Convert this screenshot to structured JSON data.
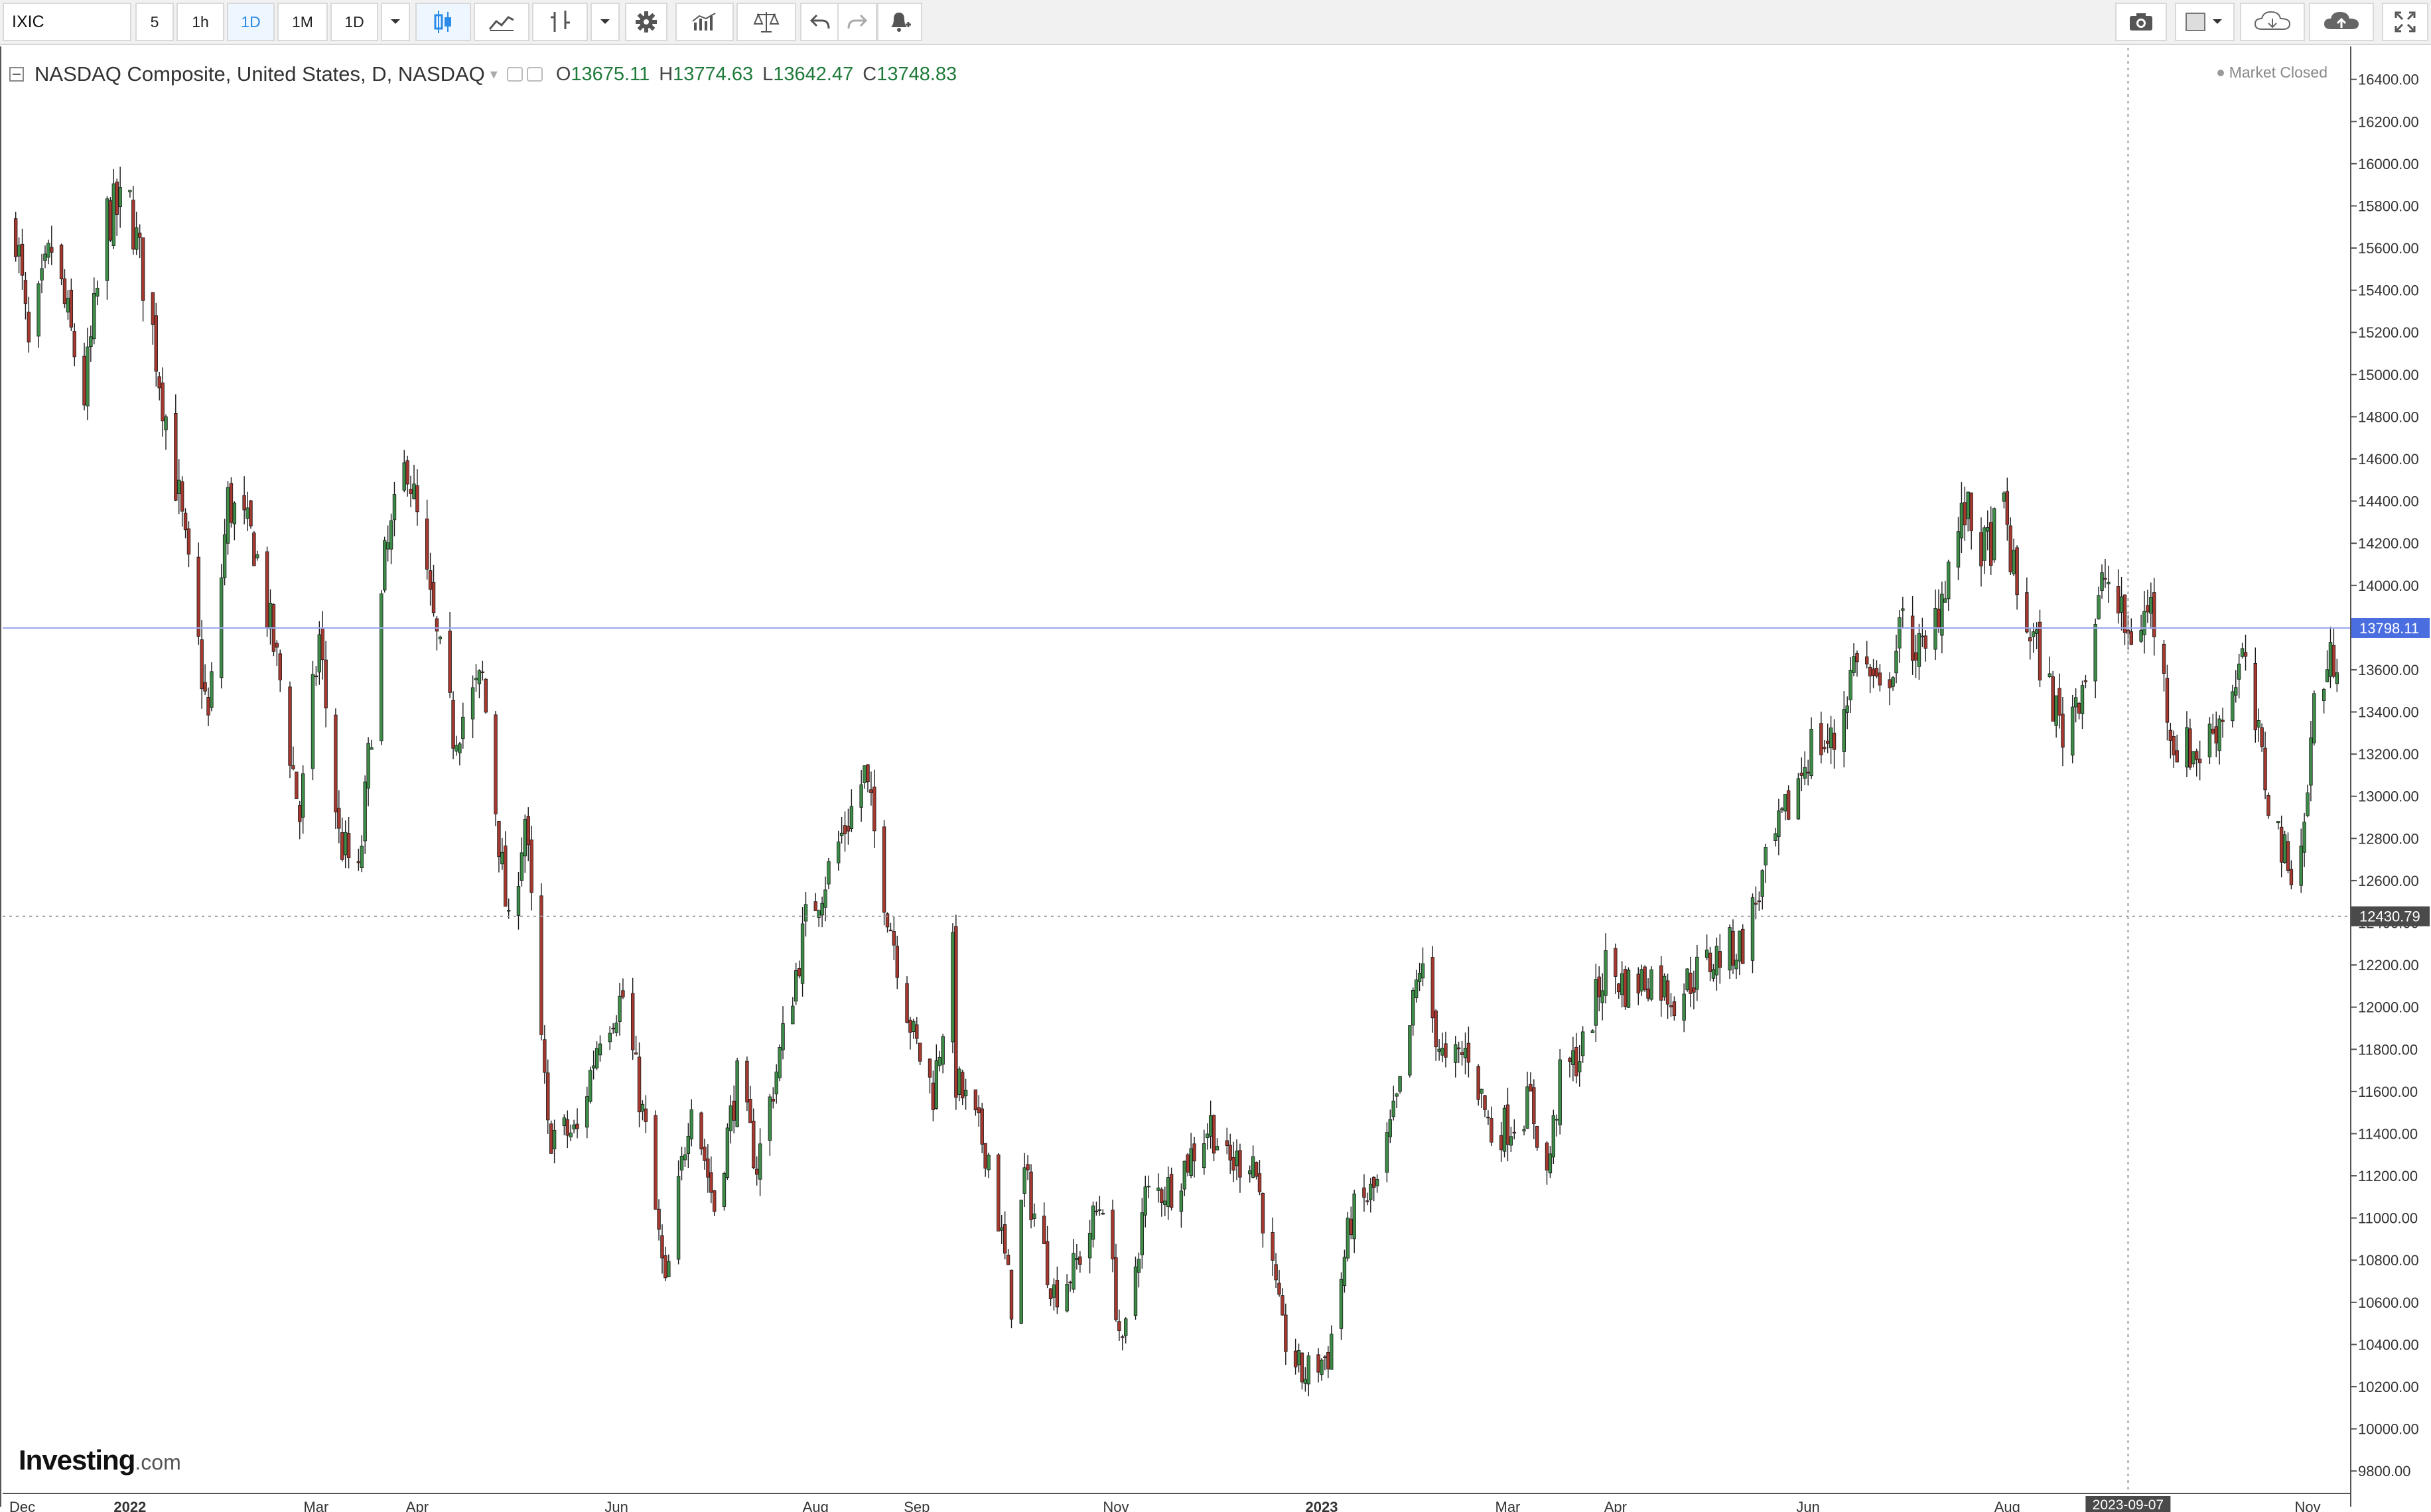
{
  "toolbar": {
    "symbol": "IXIC",
    "intervals": [
      "5",
      "1h",
      "1D",
      "1M",
      "1D"
    ],
    "active_interval": "1D",
    "icons": [
      "candles-icon",
      "line-chart-icon",
      "bar-chart-icon",
      "chevron-down-icon",
      "gear-icon",
      "indicators-icon",
      "compare-icon",
      "undo-icon",
      "redo-icon",
      "alert-icon",
      "camera-icon",
      "template-icon",
      "chevron-down-icon",
      "cloud-download-icon",
      "cloud-upload-icon",
      "fullscreen-icon"
    ]
  },
  "legend": {
    "title": "NASDAQ Composite, United States, D, NASDAQ",
    "open_key": "O",
    "open": "13675.11",
    "high_key": "H",
    "high": "13774.63",
    "low_key": "L",
    "low": "13642.47",
    "close_key": "C",
    "close": "13748.83"
  },
  "market_status": "Market Closed",
  "brand": {
    "name": "Investing",
    "suffix": ".com"
  },
  "chart_data": {
    "type": "candlestick",
    "title": "NASDAQ Composite, United States, D, NASDAQ",
    "ylim": [
      9700,
      16550
    ],
    "y_ticks": [
      "16400.00",
      "16200.00",
      "16000.00",
      "15800.00",
      "15600.00",
      "15400.00",
      "15200.00",
      "15000.00",
      "14800.00",
      "14600.00",
      "14400.00",
      "14200.00",
      "14000.00",
      "13800.00",
      "13600.00",
      "13400.00",
      "13200.00",
      "13000.00",
      "12800.00",
      "12600.00",
      "12400.00",
      "12200.00",
      "12000.00",
      "11800.00",
      "11600.00",
      "11400.00",
      "11200.00",
      "11000.00",
      "10800.00",
      "10600.00",
      "10400.00",
      "10200.00",
      "10000.00",
      "9800.00"
    ],
    "x_labels": [
      {
        "label": "Dec",
        "date": "2021-12-01"
      },
      {
        "label": "2022",
        "date": "2022-01-03"
      },
      {
        "label": "Mar",
        "date": "2022-03-01"
      },
      {
        "label": "Apr",
        "date": "2022-04-01"
      },
      {
        "label": "Jun",
        "date": "2022-06-01"
      },
      {
        "label": "Aug",
        "date": "2022-08-01"
      },
      {
        "label": "Sep",
        "date": "2022-09-01"
      },
      {
        "label": "Nov",
        "date": "2022-11-01"
      },
      {
        "label": "2023",
        "date": "2023-01-03"
      },
      {
        "label": "Mar",
        "date": "2023-03-01"
      },
      {
        "label": "Apr",
        "date": "2023-04-03"
      },
      {
        "label": "Jun",
        "date": "2023-06-01"
      },
      {
        "label": "Aug",
        "date": "2023-08-01"
      },
      {
        "label": "Nov",
        "date": "2023-11-01"
      }
    ],
    "crosshair": {
      "date": "2023-09-07",
      "price": "12430.79",
      "label": "2023-09-07"
    },
    "last_price": {
      "value": "13798.11",
      "color": "#4a6ee0"
    },
    "colors": {
      "up": "#3d8c48",
      "down": "#a5392f",
      "grid": "#f0f0f0"
    },
    "grid": false,
    "close_path": [
      [
        "2021-11-29",
        15700
      ],
      [
        "2021-12-03",
        15100
      ],
      [
        "2021-12-10",
        15600
      ],
      [
        "2021-12-20",
        14900
      ],
      [
        "2021-12-27",
        15750
      ],
      [
        "2022-01-03",
        15800
      ],
      [
        "2022-01-10",
        15200
      ],
      [
        "2022-01-18",
        14400
      ],
      [
        "2022-01-27",
        13350
      ],
      [
        "2022-02-02",
        14400
      ],
      [
        "2022-02-10",
        14200
      ],
      [
        "2022-02-18",
        13550
      ],
      [
        "2022-02-24",
        12900
      ],
      [
        "2022-03-02",
        13750
      ],
      [
        "2022-03-08",
        12800
      ],
      [
        "2022-03-14",
        12600
      ],
      [
        "2022-03-22",
        14100
      ],
      [
        "2022-03-29",
        14600
      ],
      [
        "2022-04-05",
        13900
      ],
      [
        "2022-04-12",
        13300
      ],
      [
        "2022-04-21",
        13550
      ],
      [
        "2022-04-29",
        12350
      ],
      [
        "2022-05-04",
        12900
      ],
      [
        "2022-05-11",
        11400
      ],
      [
        "2022-05-20",
        11400
      ],
      [
        "2022-05-27",
        11900
      ],
      [
        "2022-06-03",
        12050
      ],
      [
        "2022-06-10",
        11400
      ],
      [
        "2022-06-16",
        10650
      ],
      [
        "2022-06-24",
        11600
      ],
      [
        "2022-07-01",
        11050
      ],
      [
        "2022-07-08",
        11650
      ],
      [
        "2022-07-14",
        11250
      ],
      [
        "2022-07-22",
        11850
      ],
      [
        "2022-07-29",
        12400
      ],
      [
        "2022-08-05",
        12650
      ],
      [
        "2022-08-16",
        13100
      ],
      [
        "2022-08-22",
        12550
      ],
      [
        "2022-08-31",
        11850
      ],
      [
        "2022-09-06",
        11600
      ],
      [
        "2022-09-12",
        12250
      ],
      [
        "2022-09-13",
        11650
      ],
      [
        "2022-09-23",
        11300
      ],
      [
        "2022-09-30",
        10600
      ],
      [
        "2022-10-04",
        11200
      ],
      [
        "2022-10-13",
        10650
      ],
      [
        "2022-10-19",
        10750
      ],
      [
        "2022-10-28",
        11100
      ],
      [
        "2022-11-03",
        10350
      ],
      [
        "2022-11-10",
        11100
      ],
      [
        "2022-11-18",
        11150
      ],
      [
        "2022-11-30",
        11450
      ],
      [
        "2022-12-05",
        11250
      ],
      [
        "2022-12-13",
        11300
      ],
      [
        "2022-12-22",
        10450
      ],
      [
        "2022-12-28",
        10250
      ],
      [
        "2023-01-05",
        10350
      ],
      [
        "2023-01-12",
        11000
      ],
      [
        "2023-01-20",
        11150
      ],
      [
        "2023-01-27",
        11600
      ],
      [
        "2023-02-02",
        12200
      ],
      [
        "2023-02-10",
        11700
      ],
      [
        "2023-02-17",
        11800
      ],
      [
        "2023-02-24",
        11400
      ],
      [
        "2023-03-02",
        11450
      ],
      [
        "2023-03-08",
        11550
      ],
      [
        "2023-03-13",
        11200
      ],
      [
        "2023-03-17",
        11650
      ],
      [
        "2023-03-24",
        11800
      ],
      [
        "2023-03-31",
        12200
      ],
      [
        "2023-04-06",
        12100
      ],
      [
        "2023-04-14",
        12150
      ],
      [
        "2023-04-21",
        12050
      ],
      [
        "2023-04-27",
        12150
      ],
      [
        "2023-05-05",
        12250
      ],
      [
        "2023-05-12",
        12300
      ],
      [
        "2023-05-19",
        12650
      ],
      [
        "2023-05-26",
        12950
      ],
      [
        "2023-06-02",
        13250
      ],
      [
        "2023-06-09",
        13250
      ],
      [
        "2023-06-16",
        13700
      ],
      [
        "2023-06-23",
        13450
      ],
      [
        "2023-06-30",
        13800
      ],
      [
        "2023-07-07",
        13650
      ],
      [
        "2023-07-14",
        14100
      ],
      [
        "2023-07-19",
        14350
      ],
      [
        "2023-07-25",
        14150
      ],
      [
        "2023-07-31",
        14350
      ],
      [
        "2023-08-04",
        13950
      ],
      [
        "2023-08-11",
        13650
      ],
      [
        "2023-08-18",
        13300
      ],
      [
        "2023-08-25",
        13600
      ],
      [
        "2023-08-31",
        14050
      ],
      [
        "2023-09-07",
        13750
      ],
      [
        "2023-09-14",
        13900
      ],
      [
        "2023-09-21",
        13250
      ],
      [
        "2023-09-29",
        13200
      ],
      [
        "2023-10-06",
        13400
      ],
      [
        "2023-10-12",
        13650
      ],
      [
        "2023-10-20",
        13000
      ],
      [
        "2023-10-26",
        12650
      ],
      [
        "2023-10-31",
        12850
      ],
      [
        "2023-11-03",
        13450
      ],
      [
        "2023-11-10",
        13700
      ]
    ]
  }
}
